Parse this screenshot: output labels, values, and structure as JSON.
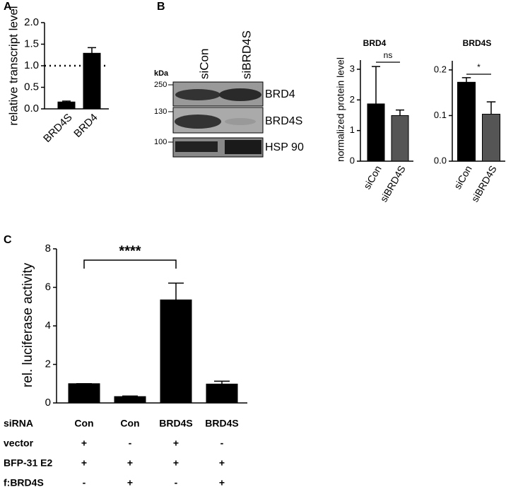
{
  "chart_data": [
    {
      "type": "bar",
      "panel": "A",
      "ylabel": "relative transcript level",
      "categories": [
        "BRD4S",
        "BRD4"
      ],
      "values": [
        0.16,
        1.29
      ],
      "errors": [
        0.02,
        0.13
      ],
      "colors": [
        "#000000",
        "#000000"
      ],
      "ylim": [
        0,
        2
      ],
      "yticks": [
        {
          "value": 0,
          "label": "0.0"
        },
        0.5,
        {
          "value": 1,
          "label": "1.0"
        },
        1.5,
        {
          "value": 2,
          "label": "2.0"
        }
      ],
      "hline": 1
    },
    {
      "type": "bar",
      "title": "BRD4",
      "ylabel": "normalized protein level",
      "categories": [
        "siCon",
        "siBRD4S"
      ],
      "values": [
        1.87,
        1.49
      ],
      "errors": [
        1.22,
        0.18
      ],
      "colors": [
        "#000000",
        "#555555"
      ],
      "ylim": [
        0,
        3.3
      ],
      "yticks": [
        0,
        1,
        2,
        3
      ],
      "annotation": "ns"
    },
    {
      "type": "bar",
      "title": "BRD4S",
      "categories": [
        "siCon",
        "siBRD4S"
      ],
      "values": [
        0.173,
        0.103
      ],
      "errors": [
        0.01,
        0.027
      ],
      "colors": [
        "#000000",
        "#555555"
      ],
      "ylim": [
        0,
        0.22
      ],
      "yticks": [
        {
          "value": 0,
          "label": "0.0"
        },
        0.1,
        0.2
      ],
      "annotation": "*"
    },
    {
      "type": "bar",
      "panel": "C",
      "ylabel": "rel. luciferase activity",
      "category_label": "siRNA",
      "categories": [
        "Con",
        "Con",
        "BRD4S",
        "BRD4S"
      ],
      "values": [
        1,
        0.33,
        5.35,
        0.98
      ],
      "errors": [
        0,
        0.03,
        0.87,
        0.15
      ],
      "colors": [
        "#000000",
        "#000000",
        "#000000",
        "#000000"
      ],
      "ylim": [
        0,
        8
      ],
      "yticks": [
        0,
        2,
        4,
        6,
        8
      ],
      "annotation": "****",
      "table": [
        {
          "label": "vector",
          "cells": [
            "+",
            "-",
            "+",
            "-"
          ]
        },
        {
          "label": "BFP-31 E2",
          "cells": [
            "+",
            "+",
            "+",
            "+"
          ]
        },
        {
          "label": "f:BRD4S",
          "cells": [
            "-",
            "+",
            "-",
            "+"
          ]
        }
      ]
    }
  ],
  "blot": {
    "panel": "B",
    "lanes": [
      "siCon",
      "siBRD4S"
    ],
    "unit": "kDa",
    "markers": [
      "250",
      "130",
      "100"
    ],
    "proteins": [
      "BRD4",
      "BRD4S",
      "HSP 90"
    ]
  }
}
